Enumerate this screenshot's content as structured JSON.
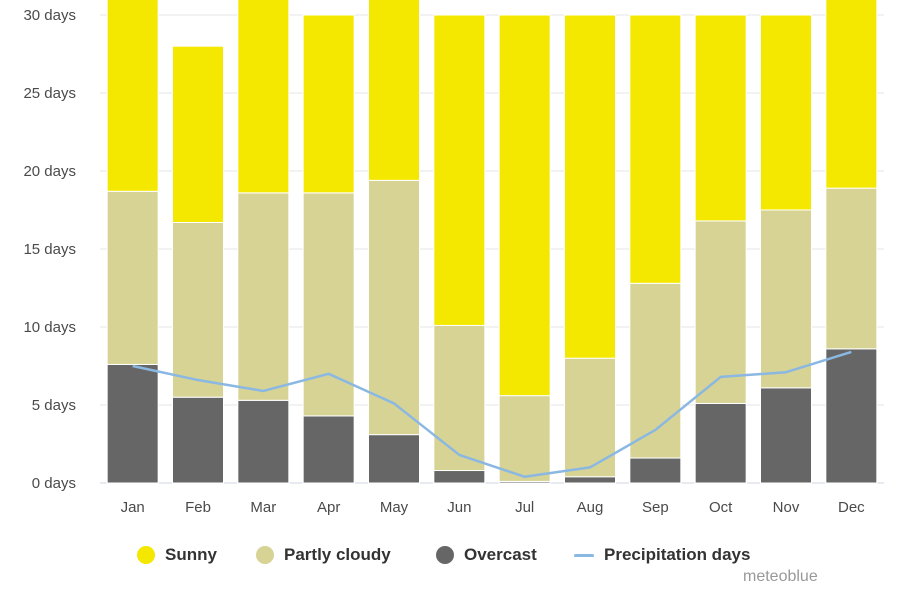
{
  "chart_data": {
    "type": "bar",
    "stacked": true,
    "categories": [
      "Jan",
      "Feb",
      "Mar",
      "Apr",
      "May",
      "Jun",
      "Jul",
      "Aug",
      "Sep",
      "Oct",
      "Nov",
      "Dec"
    ],
    "series": [
      {
        "name": "Overcast",
        "kind": "bar",
        "color": "#666666",
        "values": [
          7.6,
          5.5,
          5.3,
          4.3,
          3.1,
          0.8,
          0.1,
          0.4,
          1.6,
          5.1,
          6.1,
          8.6
        ]
      },
      {
        "name": "Partly cloudy",
        "kind": "bar",
        "color": "#d7d395",
        "values": [
          11.1,
          11.2,
          13.3,
          14.3,
          16.3,
          9.3,
          5.5,
          7.6,
          11.2,
          11.7,
          11.4,
          10.3
        ]
      },
      {
        "name": "Sunny",
        "kind": "bar",
        "color": "#f4e800",
        "values": [
          12.3,
          11.3,
          12.4,
          11.4,
          11.6,
          19.9,
          24.4,
          22.0,
          17.2,
          13.2,
          12.5,
          12.1
        ]
      },
      {
        "name": "Precipitation days",
        "kind": "line",
        "color": "#8ab8e2",
        "values": [
          7.5,
          6.6,
          5.9,
          7.0,
          5.1,
          1.8,
          0.4,
          1.0,
          3.4,
          6.8,
          7.1,
          8.4
        ]
      }
    ],
    "y_ticks": [
      "0 days",
      "5 days",
      "10 days",
      "15 days",
      "20 days",
      "25 days",
      "30 days"
    ],
    "ylim": [
      0,
      30
    ],
    "grid": true,
    "legend_position": "bottom",
    "title": "",
    "xlabel": "",
    "ylabel": ""
  },
  "legend": {
    "sunny": "Sunny",
    "partly_cloudy": "Partly cloudy",
    "overcast": "Overcast",
    "precipitation": "Precipitation days"
  },
  "colors": {
    "sunny": "#f4e800",
    "partly_cloudy": "#d7d395",
    "overcast": "#666666",
    "precipitation": "#8ab8e2"
  },
  "credit": "meteoblue"
}
